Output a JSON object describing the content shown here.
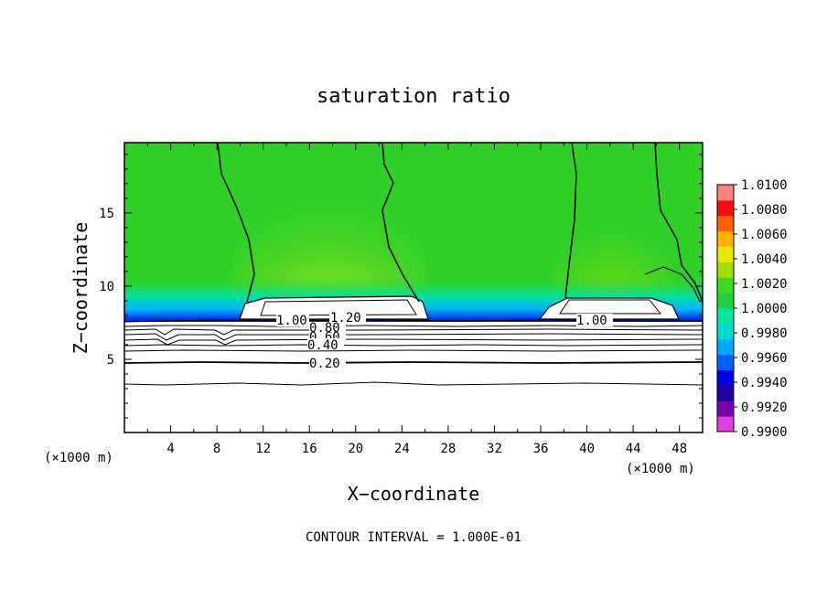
{
  "chart_data": {
    "type": "heatmap",
    "title": "saturation ratio",
    "xlabel": "X−coordinate",
    "ylabel": "Z−coordinate",
    "x_unit": "(×1000 m)",
    "z_unit": "(×1000 m)",
    "xlim": [
      0,
      50
    ],
    "ylim": [
      0,
      19.8
    ],
    "x_ticks": [
      4,
      8,
      12,
      16,
      20,
      24,
      28,
      32,
      36,
      40,
      44,
      48
    ],
    "y_ticks": [
      5,
      10,
      15
    ],
    "colorbar": {
      "labels": [
        "1.0100",
        "1.0080",
        "1.0060",
        "1.0040",
        "1.0020",
        "1.0000",
        "0.9980",
        "0.9960",
        "0.9940",
        "0.9920",
        "0.9900"
      ],
      "min": 0.99,
      "max": 1.01,
      "colors": [
        "#e040e0",
        "#7a00b0",
        "#2000a0",
        "#0000e0",
        "#0060ff",
        "#00a8ff",
        "#00d8d0",
        "#00e8a0",
        "#20d040",
        "#40d820",
        "#a0e000",
        "#e8e800",
        "#ffb000",
        "#ff6000",
        "#f01010",
        "#ff8080"
      ]
    },
    "contour_labels": [
      {
        "text": "1.00",
        "x": 11.5,
        "z": 7.7
      },
      {
        "text": "1.20",
        "x": 18.5,
        "z": 7.9
      },
      {
        "text": "0.80",
        "x": 17.0,
        "z": 7.2
      },
      {
        "text": "0.60",
        "x": 17.0,
        "z": 6.5
      },
      {
        "text": "0.40",
        "x": 17.0,
        "z": 5.9
      },
      {
        "text": "0.20",
        "x": 17.0,
        "z": 4.8
      },
      {
        "text": "1.00",
        "x": 40.5,
        "z": 7.8
      }
    ],
    "contour_levels": [
      0.2,
      0.4,
      0.6,
      0.8,
      1.0,
      1.2
    ],
    "footer": "CONTOUR INTERVAL = 1.000E-01"
  }
}
